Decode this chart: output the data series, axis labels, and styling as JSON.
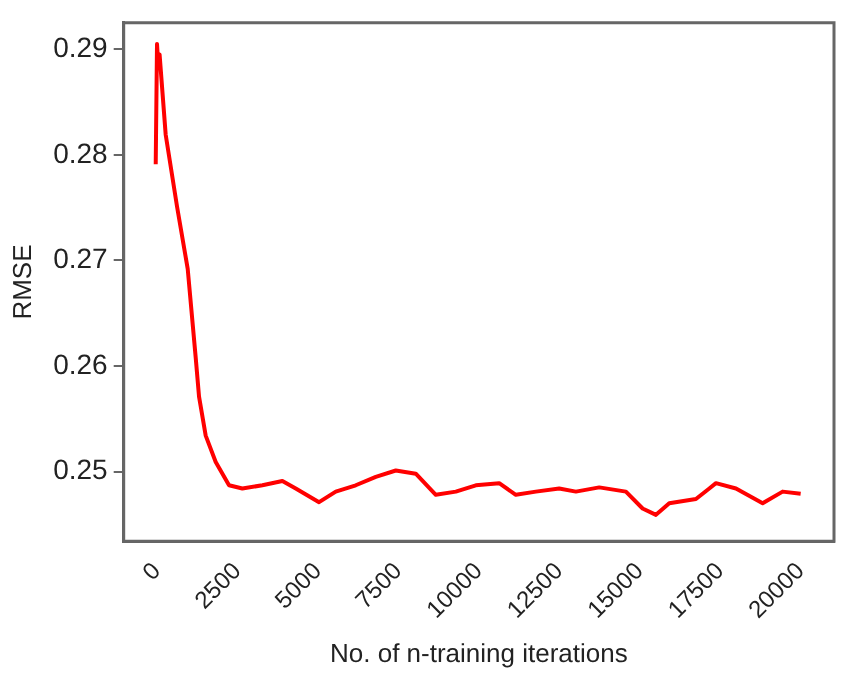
{
  "chart_data": {
    "type": "line",
    "xlabel": "No. of n-training iterations",
    "ylabel": "RMSE",
    "x": [
      -40,
      0,
      40,
      80,
      270,
      622,
      954,
      1202,
      1306,
      1513,
      1824,
      2238,
      2653,
      3275,
      3896,
      4311,
      5036,
      5554,
      6176,
      6798,
      7420,
      8041,
      8663,
      9285,
      9907,
      10632,
      11150,
      11772,
      12497,
      13016,
      13741,
      14570,
      15088,
      15503,
      15917,
      16746,
      17161,
      17368,
      17990,
      18819,
      19440,
      20000
    ],
    "series": [
      {
        "color": "#ff0000",
        "values": [
          0.2791,
          0.2905,
          0.2885,
          0.2895,
          0.2819,
          0.2751,
          0.2692,
          0.2608,
          0.2571,
          0.2534,
          0.2509,
          0.2487,
          0.2484,
          0.2487,
          0.2491,
          0.2484,
          0.2471,
          0.2481,
          0.2487,
          0.2495,
          0.2501,
          0.2498,
          0.2478,
          0.2481,
          0.2487,
          0.2489,
          0.2478,
          0.2481,
          0.2484,
          0.2481,
          0.2485,
          0.2481,
          0.2465,
          0.2459,
          0.247,
          0.2474,
          0.2484,
          0.2489,
          0.2484,
          0.247,
          0.2481,
          0.2479
        ]
      }
    ],
    "xlim": [
      -1035,
      21036
    ],
    "ylim": [
      0.2434,
      0.2925
    ],
    "xticks": [
      0,
      2500,
      5000,
      7500,
      10000,
      12500,
      15000,
      17500,
      20000
    ],
    "yticks": [
      {
        "value": 0.25,
        "label": "0.25"
      },
      {
        "value": 0.26,
        "label": "0.26"
      },
      {
        "value": 0.27,
        "label": "0.27"
      },
      {
        "value": 0.28,
        "label": "0.28"
      },
      {
        "value": 0.29,
        "label": "0.29"
      }
    ],
    "grid": false,
    "legend": false,
    "marker": "none",
    "line_style": "solid"
  }
}
